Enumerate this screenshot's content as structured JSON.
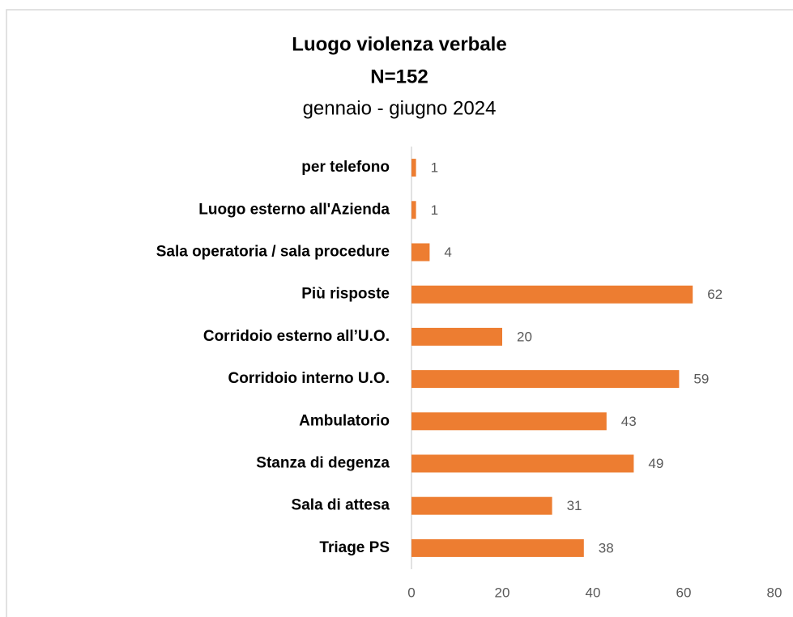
{
  "chart_data": {
    "type": "bar",
    "orientation": "horizontal",
    "title": "Luogo violenza verbale",
    "title_n": "N=152",
    "subtitle": "gennaio - giugno 2024",
    "categories": [
      "per telefono",
      "Luogo esterno all'Azienda",
      "Sala operatoria / sala procedure",
      "Più risposte",
      "Corridoio esterno all’U.O.",
      "Corridoio interno U.O.",
      "Ambulatorio",
      "Stanza di degenza",
      "Sala di attesa",
      "Triage PS"
    ],
    "values": [
      1,
      1,
      4,
      62,
      20,
      59,
      43,
      49,
      31,
      38
    ],
    "color": "#ed7d31",
    "xlim": [
      0,
      80
    ],
    "xticks": [
      0,
      20,
      40,
      60,
      80
    ],
    "grid": false
  }
}
